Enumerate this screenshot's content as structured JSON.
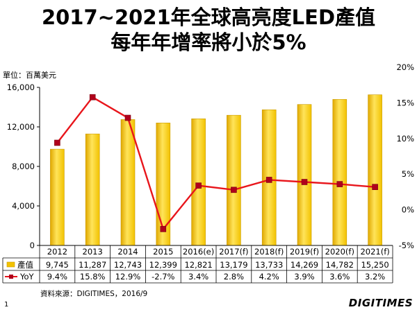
{
  "title_line1": "2017~2021年全球高亮度LED產值",
  "title_line2": "每年年增率將小於5%",
  "unit_label": "單位：百萬美元",
  "source_text": "資料來源：DIGITIMES，2016/9",
  "page_number": "1",
  "logo_text": "DIGITIMES",
  "colors": {
    "bar": "#f2c200",
    "line": "#e8151b",
    "marker": "#b0001c"
  },
  "chart_data": {
    "type": "bar+line",
    "categories": [
      "2012",
      "2013",
      "2014",
      "2015",
      "2016(e)",
      "2017(f)",
      "2018(f)",
      "2019(f)",
      "2020(f)",
      "2021(f)"
    ],
    "series": [
      {
        "name": "產值",
        "type": "bar",
        "axis": "left",
        "values": [
          9745,
          11287,
          12743,
          12399,
          12821,
          13179,
          13733,
          14269,
          14782,
          15250
        ],
        "labels": [
          "9,745",
          "11,287",
          "12,743",
          "12,399",
          "12,821",
          "13,179",
          "13,733",
          "14,269",
          "14,782",
          "15,250"
        ]
      },
      {
        "name": "YoY",
        "type": "line",
        "axis": "right",
        "values": [
          9.4,
          15.8,
          12.9,
          -2.7,
          3.4,
          2.8,
          4.2,
          3.9,
          3.6,
          3.2
        ],
        "labels": [
          "9.4%",
          "15.8%",
          "12.9%",
          "-2.7%",
          "3.4%",
          "2.8%",
          "4.2%",
          "3.9%",
          "3.6%",
          "3.2%"
        ]
      }
    ],
    "y_left": {
      "range": [
        0,
        16000
      ],
      "ticks": [
        "0",
        "4,000",
        "8,000",
        "12,000",
        "16,000"
      ],
      "tick_values": [
        0,
        4000,
        8000,
        12000,
        16000
      ]
    },
    "y_right": {
      "range": [
        -5,
        20
      ],
      "ticks": [
        "-5%",
        "0%",
        "5%",
        "10%",
        "15%",
        "20%"
      ],
      "tick_values": [
        -5,
        0,
        5,
        10,
        15,
        20
      ]
    },
    "grid": false,
    "legend": "data-table-below"
  }
}
